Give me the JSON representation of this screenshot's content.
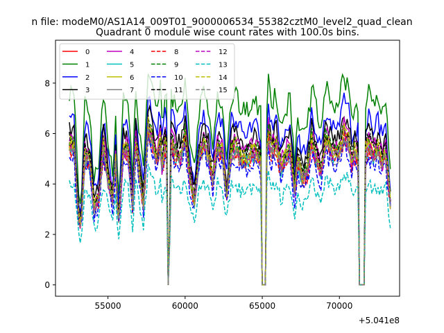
{
  "chart_data": {
    "type": "line",
    "suptitle": "n file: modeM0/AS1A14_009T01_9000006534_55382cztM0_level2_quad_clean",
    "title": "Quadrant 0 module wise count rates with 100.0s bins.",
    "xlabel": "",
    "ylabel": "",
    "x_offset_label": "+5.041e8",
    "x_offset": 504100000,
    "xlim": [
      51600,
      73900
    ],
    "ylim": [
      -0.45,
      9.7
    ],
    "xticks": [
      55000,
      60000,
      65000,
      70000
    ],
    "xtick_labels": [
      "55000",
      "60000",
      "65000",
      "70000"
    ],
    "yticks": [
      0,
      2,
      4,
      6,
      8
    ],
    "ytick_labels": [
      "0",
      "2",
      "4",
      "6",
      "8"
    ],
    "grid": false,
    "legend_position": "top-left",
    "legend_columns": 4,
    "x_range": [
      52500,
      73300
    ],
    "bin_size_s": 100,
    "gaps": [
      [
        58850,
        58950
      ],
      [
        64980,
        65200
      ],
      [
        71270,
        71650
      ]
    ],
    "profile": {
      "x": [
        52500,
        52800,
        53000,
        53150,
        53300,
        53500,
        53800,
        54100,
        54400,
        54700,
        55000,
        55300,
        55500,
        55650,
        55800,
        56000,
        56300,
        56600,
        56800,
        57000,
        57300,
        57600,
        57900,
        58200,
        58400,
        58550,
        58650,
        58800,
        58950,
        59100,
        59400,
        59700,
        60000,
        60300,
        60600,
        60900,
        61200,
        61500,
        61800,
        62100,
        62400,
        62700,
        63000,
        63300,
        63600,
        63900,
        64200,
        64500,
        64800,
        64950,
        65250,
        65400,
        65600,
        65900,
        66200,
        66500,
        66800,
        67100,
        67300,
        67600,
        67900,
        68200,
        68500,
        68800,
        69100,
        69400,
        69700,
        70000,
        70300,
        70600,
        70800,
        71000,
        71200,
        71700,
        71900,
        72200,
        72500,
        72800,
        73000,
        73300
      ],
      "level": [
        5.5,
        5.4,
        3.5,
        2.2,
        2.8,
        5.1,
        4.9,
        3.0,
        3.4,
        5.4,
        4.2,
        3.3,
        4.8,
        2.3,
        3.4,
        5.3,
        5.2,
        3.1,
        5.6,
        4.5,
        3.2,
        6.2,
        5.5,
        5.0,
        5.6,
        4.2,
        5.8,
        5.2,
        0.3,
        5.5,
        5.1,
        5.0,
        5.8,
        4.2,
        3.3,
        5.0,
        5.6,
        5.1,
        4.1,
        5.4,
        5.2,
        3.6,
        5.3,
        5.4,
        5.0,
        4.9,
        5.1,
        5.2,
        5.0,
        4.8,
        4.8,
        5.9,
        5.2,
        5.5,
        4.6,
        5.0,
        5.3,
        3.6,
        4.9,
        4.2,
        4.4,
        5.6,
        5.0,
        4.4,
        5.6,
        5.4,
        5.0,
        5.3,
        5.9,
        5.6,
        4.8,
        5.2,
        5.0,
        5.2,
        5.5,
        5.1,
        5.3,
        4.8,
        5.2,
        3.2
      ]
    },
    "series": [
      {
        "name": "0",
        "color": "#ff0000",
        "style": "solid",
        "scale": 1.0,
        "offset": 0.0,
        "noise": 0.28
      },
      {
        "name": "1",
        "color": "#008000",
        "style": "solid",
        "scale": 1.38,
        "offset": 0.05,
        "noise": 0.35
      },
      {
        "name": "2",
        "color": "#0000ff",
        "style": "solid",
        "scale": 1.22,
        "offset": 0.02,
        "noise": 0.32
      },
      {
        "name": "3",
        "color": "#000000",
        "style": "solid",
        "scale": 1.12,
        "offset": 0.05,
        "noise": 0.28
      },
      {
        "name": "4",
        "color": "#bf00bf",
        "style": "solid",
        "scale": 1.07,
        "offset": 0.0,
        "noise": 0.28
      },
      {
        "name": "5",
        "color": "#00bfbf",
        "style": "solid",
        "scale": 1.0,
        "offset": -0.08,
        "noise": 0.25
      },
      {
        "name": "6",
        "color": "#bfbf00",
        "style": "solid",
        "scale": 1.02,
        "offset": 0.0,
        "noise": 0.28
      },
      {
        "name": "7",
        "color": "#808080",
        "style": "solid",
        "scale": 0.98,
        "offset": 0.0,
        "noise": 0.26
      },
      {
        "name": "8",
        "color": "#ff0000",
        "style": "dashed",
        "scale": 0.97,
        "offset": 0.0,
        "noise": 0.28
      },
      {
        "name": "9",
        "color": "#008000",
        "style": "dashed",
        "scale": 1.05,
        "offset": 0.0,
        "noise": 0.28
      },
      {
        "name": "10",
        "color": "#0000ff",
        "style": "dashed",
        "scale": 0.92,
        "offset": 0.0,
        "noise": 0.3
      },
      {
        "name": "11",
        "color": "#000000",
        "style": "dashed",
        "scale": 1.06,
        "offset": 0.0,
        "noise": 0.26
      },
      {
        "name": "12",
        "color": "#bf00bf",
        "style": "dashed",
        "scale": 1.0,
        "offset": 0.0,
        "noise": 0.28
      },
      {
        "name": "13",
        "color": "#00bfbf",
        "style": "dashed",
        "scale": 0.74,
        "offset": 0.0,
        "noise": 0.24
      },
      {
        "name": "14",
        "color": "#bfbf00",
        "style": "dashed",
        "scale": 1.03,
        "offset": 0.0,
        "noise": 0.28
      },
      {
        "name": "15",
        "color": "#808080",
        "style": "dashed",
        "scale": 0.99,
        "offset": 0.0,
        "noise": 0.27
      }
    ]
  }
}
